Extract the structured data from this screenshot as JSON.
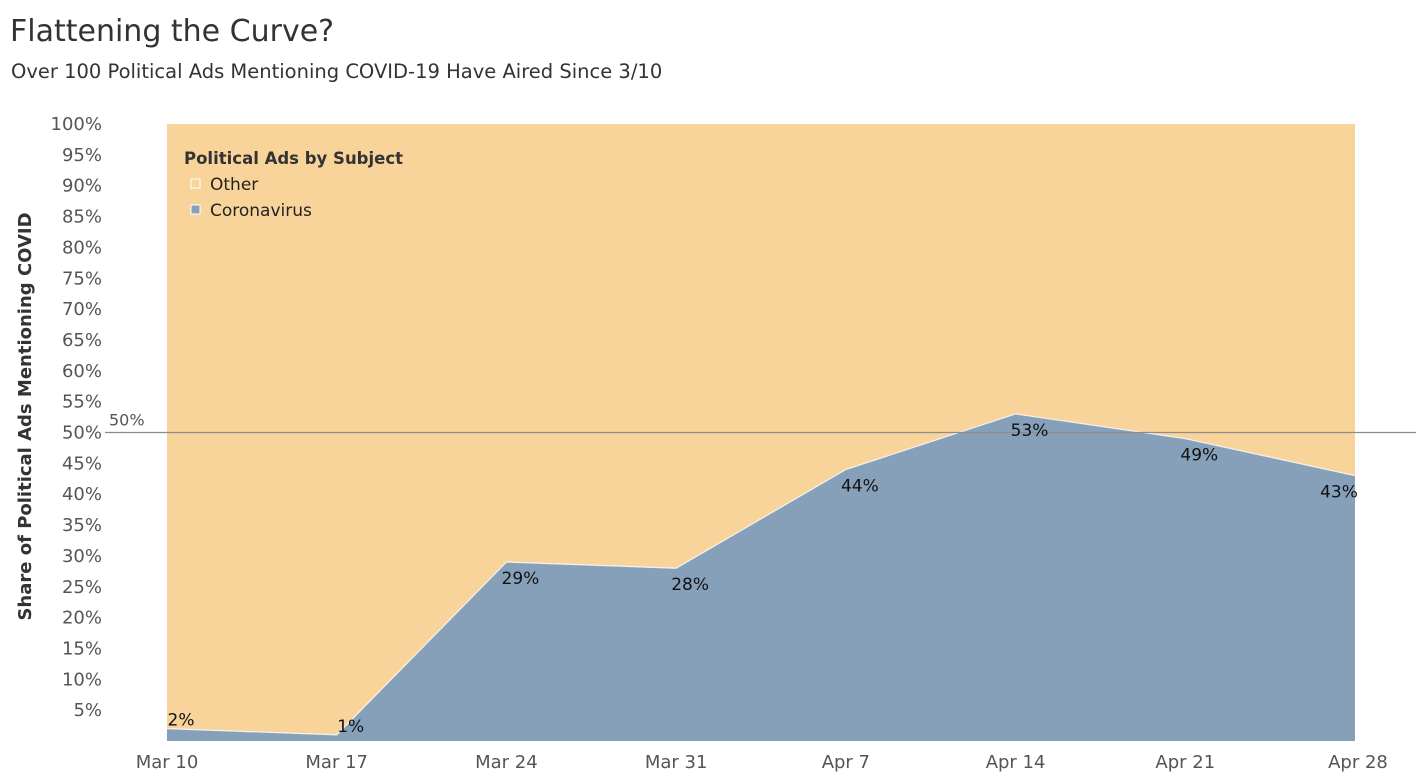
{
  "title": "Flattening the Curve?",
  "subtitle": "Over 100 Political Ads Mentioning COVID-19 Have Aired Since 3/10",
  "chart_data": {
    "type": "area",
    "stacked": true,
    "percent": true,
    "x": [
      "Mar 10",
      "Mar 17",
      "Mar 24",
      "Mar 31",
      "Apr 7",
      "Apr 14",
      "Apr 21",
      "Apr 28"
    ],
    "series": [
      {
        "name": "Coronavirus",
        "values": [
          2,
          1,
          29,
          28,
          44,
          53,
          49,
          43
        ],
        "color": "#87a0ba"
      },
      {
        "name": "Other",
        "values": [
          98,
          99,
          71,
          72,
          56,
          47,
          51,
          57
        ],
        "color": "#f8d49b"
      }
    ],
    "data_labels": [
      "2%",
      "1%",
      "29%",
      "28%",
      "44%",
      "53%",
      "49%",
      "43%"
    ],
    "ylabel": "Share of Political Ads Mentioning COVID",
    "xlabel": "",
    "ylim": [
      0,
      100
    ],
    "yticks": [
      "5%",
      "10%",
      "15%",
      "20%",
      "25%",
      "30%",
      "35%",
      "40%",
      "45%",
      "50%",
      "55%",
      "60%",
      "65%",
      "70%",
      "75%",
      "80%",
      "85%",
      "90%",
      "95%",
      "100%"
    ],
    "reference_line": {
      "value": 50,
      "label": "50%",
      "color": "#8c8c8c"
    },
    "legend": {
      "title": "Political Ads by Subject",
      "position": "top-left",
      "items": [
        {
          "label": "Other",
          "color": "#f8d49b"
        },
        {
          "label": "Coronavirus",
          "color": "#87a0ba"
        }
      ]
    },
    "grid": false
  }
}
